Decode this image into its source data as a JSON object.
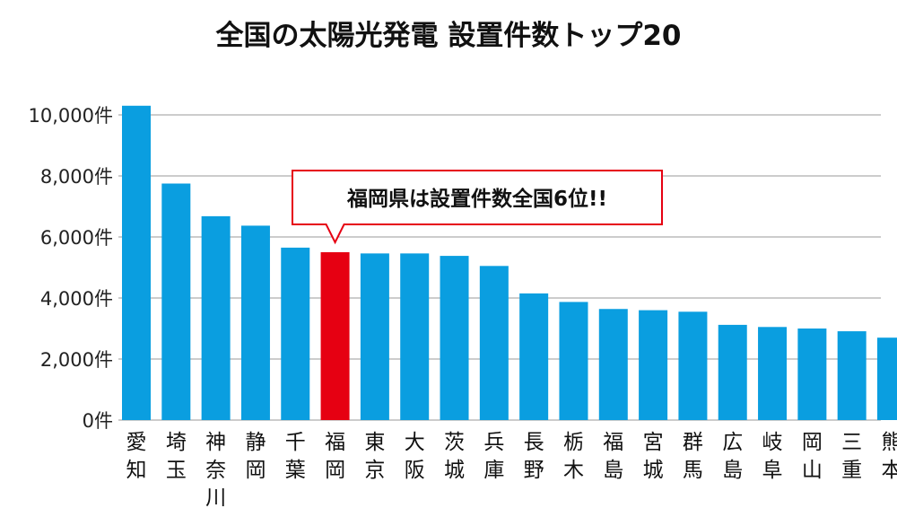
{
  "chart_data": {
    "type": "bar",
    "title": "全国の太陽光発電 設置件数トップ20",
    "categories": [
      "愛知",
      "埼玉",
      "神奈川",
      "静岡",
      "千葉",
      "福岡",
      "東京",
      "大阪",
      "茨城",
      "兵庫",
      "長野",
      "栃木",
      "福島",
      "宮城",
      "群馬",
      "広島",
      "岐阜",
      "岡山",
      "三重",
      "熊本"
    ],
    "values": [
      10300,
      7750,
      6680,
      6370,
      5650,
      5500,
      5460,
      5460,
      5380,
      5050,
      4150,
      3870,
      3640,
      3600,
      3550,
      3120,
      3050,
      3000,
      2910,
      2700
    ],
    "highlight_index": 5,
    "ylim": [
      0,
      10000
    ],
    "yticks": [
      0,
      2000,
      4000,
      6000,
      8000,
      10000
    ],
    "ytick_labels": [
      "0件",
      "2,000件",
      "4,000件",
      "6,000件",
      "8,000件",
      "10,000件"
    ],
    "grid": true,
    "annotation": "福岡県は設置件数全国6位!!",
    "colors": {
      "bar": "#0a9ee0",
      "highlight": "#e60012",
      "callout_border": "#e60012",
      "grid": "#9a9a9a"
    }
  }
}
